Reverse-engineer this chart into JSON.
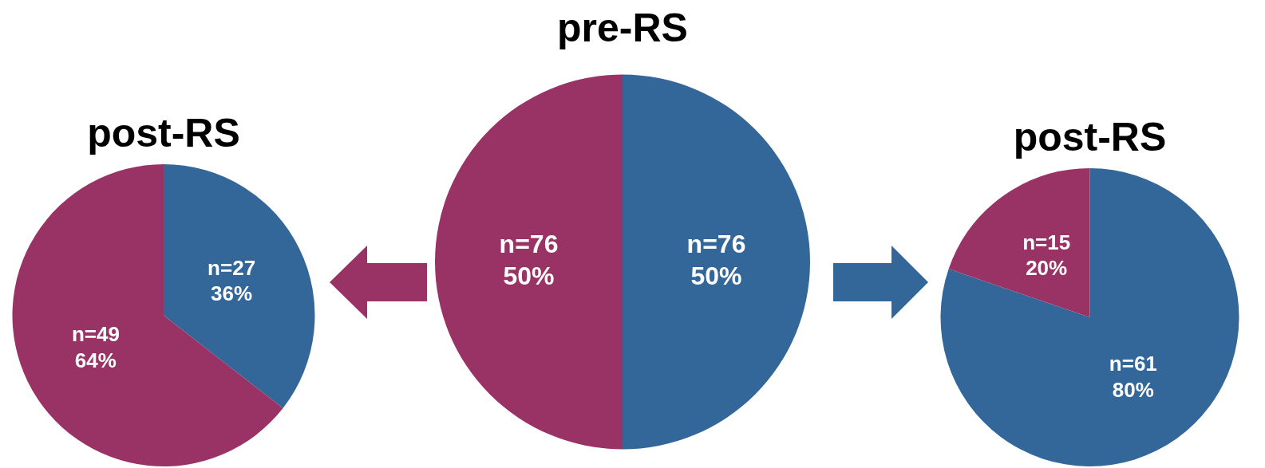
{
  "chart_data": [
    {
      "type": "pie",
      "title": "post-RS",
      "categories": [
        null,
        null
      ],
      "values": [
        27,
        49
      ],
      "colors": [
        "#336699",
        "#993366"
      ],
      "value_labels": [
        "n=27\n36%",
        "n=49\n64%"
      ]
    },
    {
      "type": "pie",
      "title": "pre-RS",
      "categories": [
        null,
        null
      ],
      "values": [
        76,
        76
      ],
      "colors": [
        "#336699",
        "#993366"
      ],
      "value_labels": [
        "n=76\n50%",
        "n=76\n50%"
      ]
    },
    {
      "type": "pie",
      "title": "post-RS",
      "categories": [
        null,
        null
      ],
      "values": [
        61,
        15
      ],
      "colors": [
        "#336699",
        "#993366"
      ],
      "value_labels": [
        "n=61\n80%",
        "n=15\n20%"
      ]
    }
  ]
}
